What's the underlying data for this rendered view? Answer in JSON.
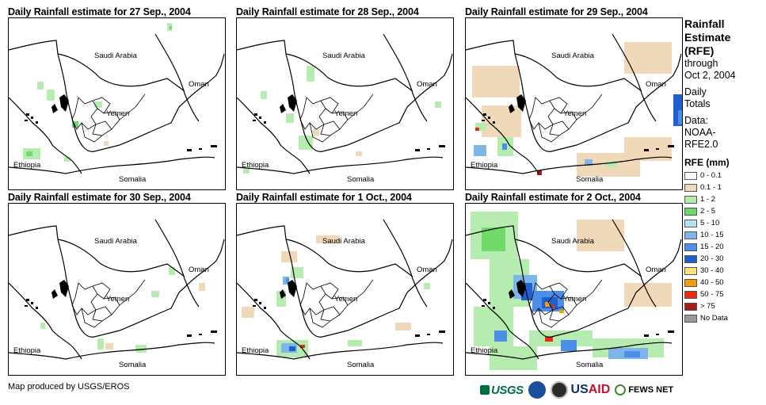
{
  "panels": [
    {
      "title": "Daily Rainfall estimate for 27 Sep., 2004"
    },
    {
      "title": "Daily Rainfall estimate for 28 Sep., 2004"
    },
    {
      "title": "Daily Rainfall estimate for 29 Sep., 2004"
    },
    {
      "title": "Daily Rainfall estimate for 30 Sep., 2004"
    },
    {
      "title": "Daily Rainfall estimate for 1 Oct., 2004"
    },
    {
      "title": "Daily Rainfall estimate for 2 Oct., 2004"
    }
  ],
  "map_labels": {
    "saudi": "Saudi Arabia",
    "oman": "Oman",
    "yemen": "Yemen",
    "ethiopia": "Ethiopia",
    "somalia": "Somalia"
  },
  "legend": {
    "title_line1": "Rainfall",
    "title_line2": "Estimate",
    "title_line3": "(RFE)",
    "through": "through",
    "through_date": "Oct 2, 2004",
    "daily1": "Daily",
    "daily2": "Totals",
    "data1": "Data:",
    "data2": "NOAA-",
    "data3": "RFE2.0",
    "rfe_heading": "RFE (mm)",
    "items": [
      {
        "label": "0 - 0.1",
        "color": "#ffffff"
      },
      {
        "label": "0.1 - 1",
        "color": "#efd9b9"
      },
      {
        "label": "1 - 2",
        "color": "#b7ecb1"
      },
      {
        "label": "2 - 5",
        "color": "#6fd96a"
      },
      {
        "label": "5 - 10",
        "color": "#b2e5f5"
      },
      {
        "label": "10 - 15",
        "color": "#7fb6ea"
      },
      {
        "label": "15 - 20",
        "color": "#4c8fe6"
      },
      {
        "label": "20 - 30",
        "color": "#1f5fd0"
      },
      {
        "label": "30 - 40",
        "color": "#ffe27a"
      },
      {
        "label": "40 - 50",
        "color": "#f5a000"
      },
      {
        "label": "50 - 75",
        "color": "#e82c0c"
      },
      {
        "label": "> 75",
        "color": "#a51e1e"
      },
      {
        "label": "No Data",
        "color": "#999999"
      }
    ]
  },
  "credit": "Map produced by USGS/EROS",
  "logos": {
    "usgs": "USGS",
    "usaid_us": "US",
    "usaid_aid": "AID",
    "fews": "FEWS NET"
  }
}
